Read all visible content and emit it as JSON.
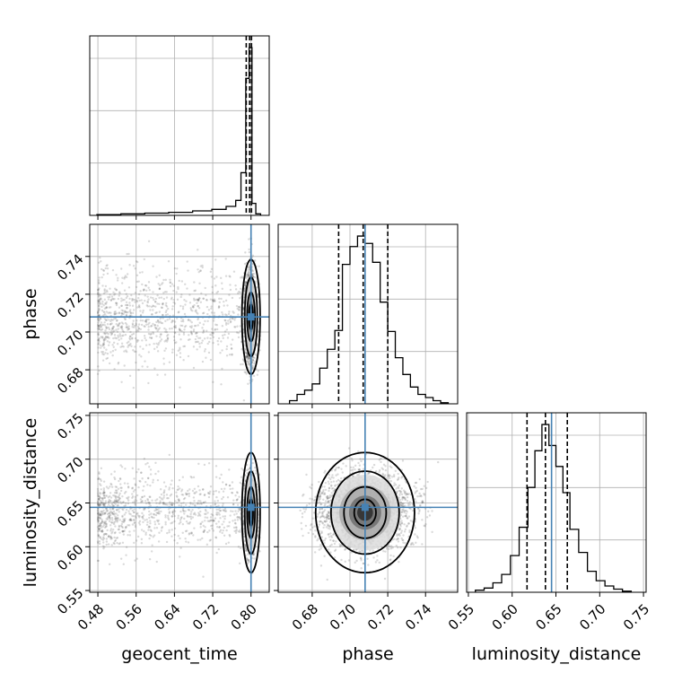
{
  "chart_data": {
    "type": "corner",
    "parameters": [
      "geocent_time",
      "phase",
      "luminosity_distance"
    ],
    "truths": {
      "geocent_time": 0.8,
      "phase": 0.708,
      "luminosity_distance": 0.645
    },
    "quantile_lines": {
      "geocent_time": [
        0.79,
        0.797,
        0.801
      ],
      "phase": [
        0.694,
        0.707,
        0.72
      ],
      "luminosity_distance": [
        0.617,
        0.638,
        0.663
      ]
    },
    "axis_ranges": {
      "geocent_time": [
        0.463,
        0.838
      ],
      "phase": [
        0.662,
        0.757
      ],
      "luminosity_distance": [
        0.548,
        0.753
      ]
    },
    "ticks": {
      "geocent_time": [
        "0.48",
        "0.56",
        "0.64",
        "0.72",
        "0.80"
      ],
      "phase": [
        "0.68",
        "0.70",
        "0.72",
        "0.74"
      ],
      "luminosity_distance": [
        "0.55",
        "0.60",
        "0.65",
        "0.70",
        "0.75"
      ]
    },
    "histograms": {
      "geocent_time": {
        "bin_edges": [
          0.478,
          0.528,
          0.578,
          0.628,
          0.678,
          0.718,
          0.748,
          0.768,
          0.779,
          0.789,
          0.796,
          0.802,
          0.81,
          0.82
        ],
        "counts": [
          1,
          2,
          3,
          4,
          6,
          8,
          12,
          20,
          57,
          183,
          224,
          16,
          2
        ]
      },
      "phase": {
        "bin_edges": [
          0.668,
          0.672,
          0.676,
          0.68,
          0.684,
          0.688,
          0.692,
          0.696,
          0.7,
          0.704,
          0.708,
          0.712,
          0.716,
          0.72,
          0.724,
          0.728,
          0.732,
          0.736,
          0.74,
          0.744,
          0.748,
          0.752
        ],
        "counts": [
          3,
          9,
          13,
          19,
          34,
          52,
          70,
          133,
          150,
          160,
          153,
          135,
          97,
          69,
          44,
          28,
          16,
          9,
          6,
          3,
          1
        ]
      },
      "luminosity_distance": {
        "bin_edges": [
          0.558,
          0.568,
          0.578,
          0.588,
          0.598,
          0.608,
          0.618,
          0.626,
          0.634,
          0.642,
          0.65,
          0.658,
          0.666,
          0.676,
          0.686,
          0.696,
          0.706,
          0.716,
          0.726,
          0.736
        ],
        "counts": [
          2,
          4,
          9,
          17,
          35,
          62,
          100,
          135,
          160,
          140,
          120,
          95,
          60,
          38,
          20,
          11,
          6,
          3,
          1
        ]
      }
    },
    "grid": true,
    "scatter_seed": 7
  }
}
